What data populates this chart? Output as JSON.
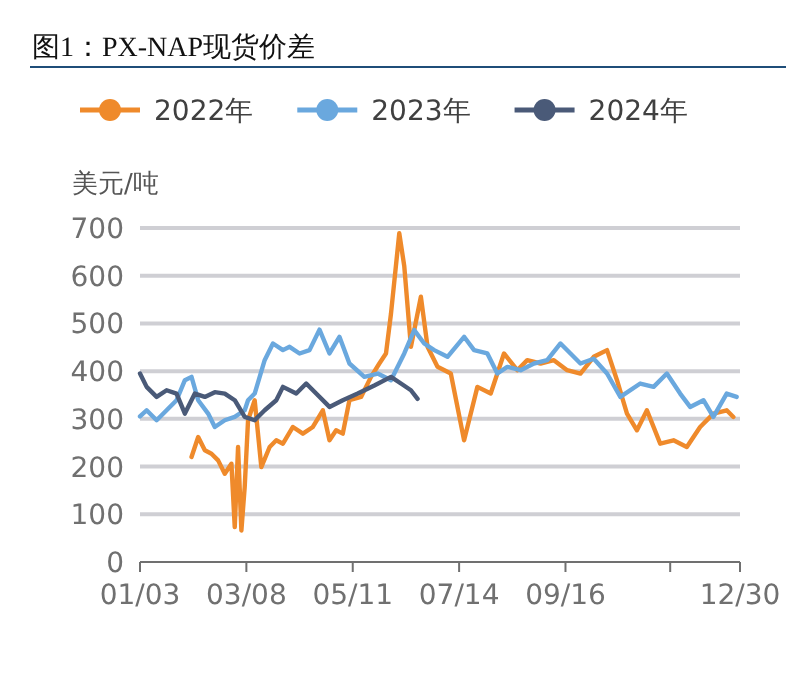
{
  "chart_data": {
    "type": "line",
    "title": "图1：PX-NAP现货价差",
    "ylabel": "美元/吨",
    "xlim": [
      "--01-03",
      "--12-30"
    ],
    "xticks": [
      {
        "value": "--01-03",
        "label": "01/03"
      },
      {
        "value": "--03-08",
        "label": "03/08"
      },
      {
        "value": "--05-11",
        "label": "05/11"
      },
      {
        "value": "--07-14",
        "label": "07/14"
      },
      {
        "value": "--09-16",
        "label": "09/16"
      },
      {
        "value": "--11-18",
        "label": null
      },
      {
        "value": "--12-30",
        "label": "12/30"
      }
    ],
    "ylim": [
      0,
      700
    ],
    "yticks": [
      0,
      100,
      200,
      300,
      400,
      500,
      600,
      700
    ],
    "grid": "y",
    "legend": "top",
    "marker": "none",
    "line_style": "solid",
    "series": [
      {
        "name": "2022年",
        "color": "#ef8a2b",
        "x": [
          "--02-03",
          "--02-07",
          "--02-11",
          "--02-15",
          "--02-19",
          "--02-23",
          "--02-27",
          "--03-01",
          "--03-03",
          "--03-05",
          "--03-07",
          "--03-09",
          "--03-13",
          "--03-17",
          "--03-22",
          "--03-26",
          "--03-30",
          "--04-05",
          "--04-11",
          "--04-17",
          "--04-23",
          "--04-27",
          "--05-01",
          "--05-05",
          "--05-09",
          "--05-16",
          "--05-22",
          "--05-27",
          "--05-31",
          "--06-03",
          "--06-08",
          "--06-11",
          "--06-15",
          "--06-21",
          "--06-25",
          "--07-01",
          "--07-09",
          "--07-17",
          "--07-25",
          "--08-02",
          "--08-10",
          "--08-18",
          "--08-24",
          "--09-01",
          "--09-09",
          "--09-17",
          "--09-25",
          "--10-03",
          "--10-11",
          "--10-17",
          "--10-23",
          "--10-29",
          "--11-04",
          "--11-12",
          "--11-20",
          "--11-28",
          "--12-06",
          "--12-14",
          "--12-22",
          "--12-26"
        ],
        "values": [
          220,
          262,
          234,
          227,
          213,
          185,
          206,
          73,
          241,
          66,
          157,
          297,
          339,
          199,
          241,
          255,
          248,
          283,
          269,
          283,
          318,
          255,
          276,
          269,
          339,
          346,
          388,
          416,
          437,
          520,
          689,
          620,
          451,
          556,
          451,
          409,
          395,
          255,
          367,
          353,
          437,
          402,
          423,
          416,
          423,
          402,
          395,
          430,
          444,
          381,
          311,
          276,
          318,
          248,
          255,
          241,
          283,
          311,
          318,
          304
        ]
      },
      {
        "name": "2023年",
        "color": "#6aa8de",
        "x": [
          "--01-03",
          "--01-07",
          "--01-13",
          "--01-19",
          "--01-25",
          "--01-30",
          "--02-03",
          "--02-07",
          "--02-13",
          "--02-17",
          "--02-23",
          "--03-01",
          "--03-07",
          "--03-09",
          "--03-13",
          "--03-19",
          "--03-24",
          "--03-30",
          "--04-03",
          "--04-09",
          "--04-15",
          "--04-21",
          "--04-27",
          "--05-03",
          "--05-09",
          "--05-18",
          "--05-26",
          "--06-03",
          "--06-11",
          "--06-17",
          "--06-23",
          "--06-29",
          "--07-07",
          "--07-17",
          "--07-23",
          "--07-31",
          "--08-06",
          "--08-12",
          "--08-20",
          "--08-28",
          "--09-05",
          "--09-13",
          "--09-19",
          "--09-25",
          "--10-03",
          "--10-11",
          "--10-19",
          "--10-31",
          "--11-08",
          "--11-16",
          "--11-24",
          "--11-30",
          "--12-08",
          "--12-14",
          "--12-22",
          "--12-28"
        ],
        "values": [
          305,
          318,
          297,
          318,
          339,
          381,
          388,
          339,
          311,
          283,
          297,
          304,
          318,
          339,
          353,
          423,
          458,
          444,
          451,
          437,
          444,
          487,
          437,
          472,
          416,
          388,
          395,
          381,
          437,
          486,
          458,
          444,
          430,
          472,
          444,
          437,
          395,
          409,
          402,
          416,
          423,
          458,
          437,
          416,
          426,
          395,
          346,
          374,
          367,
          395,
          353,
          325,
          339,
          304,
          353,
          346
        ]
      },
      {
        "name": "2024年",
        "color": "#4a5a78",
        "x": [
          "--01-03",
          "--01-07",
          "--01-13",
          "--01-19",
          "--01-25",
          "--01-30",
          "--02-05",
          "--02-11",
          "--02-17",
          "--02-23",
          "--03-01",
          "--03-07",
          "--03-13",
          "--03-19",
          "--03-26",
          "--03-30",
          "--04-07",
          "--04-13",
          "--04-19",
          "--04-27",
          "--05-05",
          "--05-14",
          "--05-24",
          "--06-03",
          "--06-09",
          "--06-15",
          "--06-19"
        ],
        "values": [
          395,
          367,
          346,
          360,
          353,
          311,
          353,
          346,
          356,
          353,
          339,
          304,
          297,
          318,
          339,
          367,
          353,
          374,
          353,
          325,
          339,
          353,
          370,
          388,
          374,
          360,
          342
        ]
      }
    ]
  }
}
